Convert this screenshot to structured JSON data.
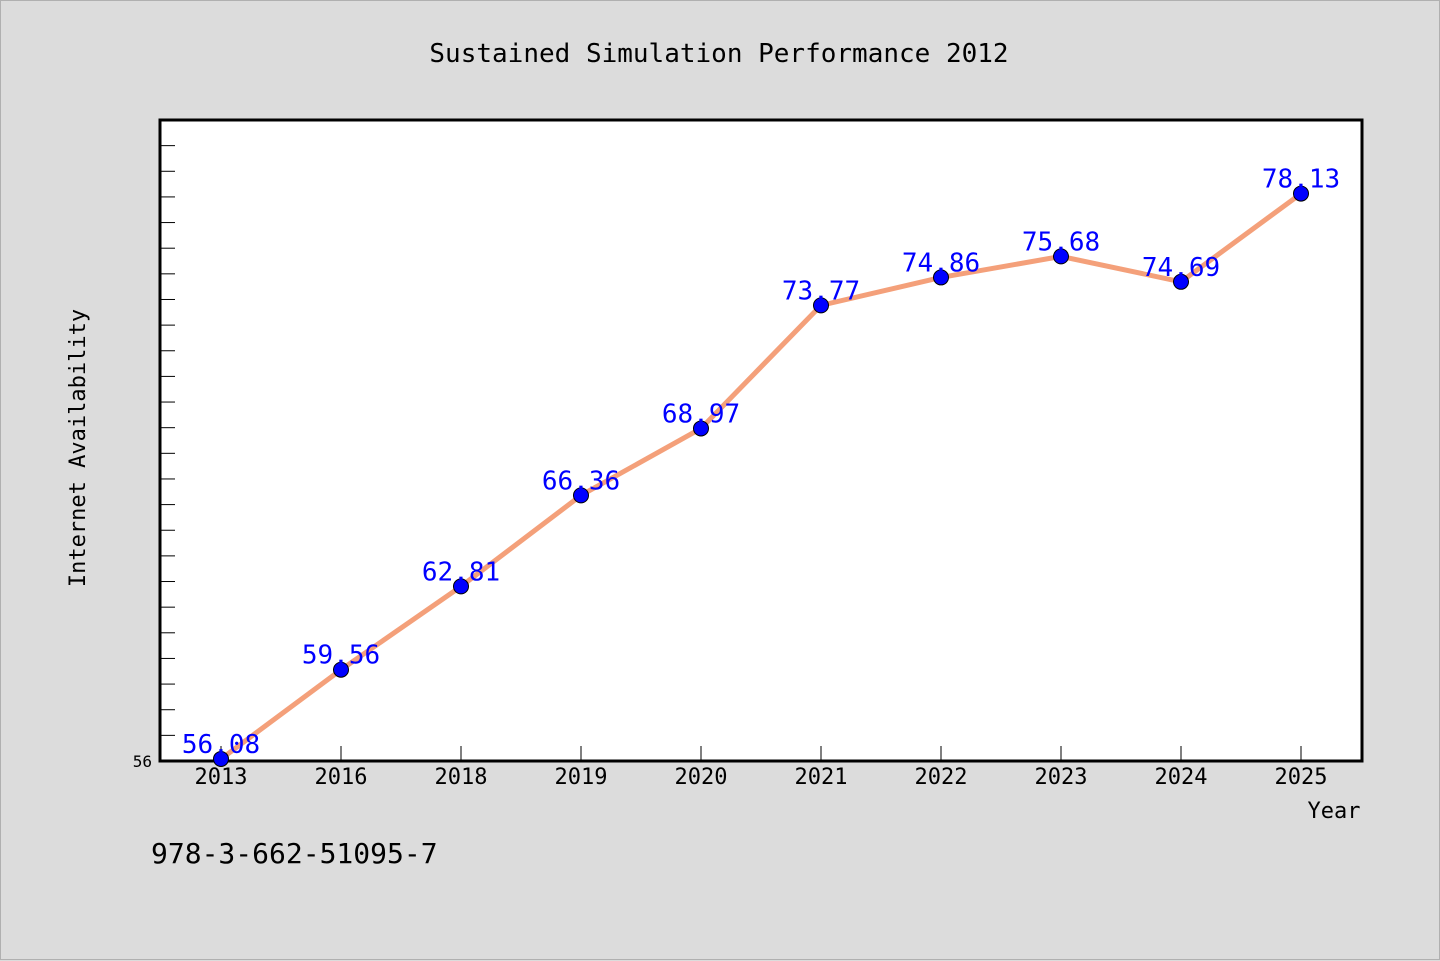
{
  "chart_data": {
    "type": "line",
    "title": "Sustained Simulation Performance 2012",
    "xlabel": "Year",
    "ylabel": "Internet Availability",
    "categories": [
      "2013",
      "2016",
      "2018",
      "2019",
      "2020",
      "2021",
      "2022",
      "2023",
      "2024",
      "2025"
    ],
    "series": [
      {
        "values": [
          56.08,
          59.56,
          62.81,
          66.36,
          68.97,
          73.77,
          74.86,
          75.68,
          74.69,
          78.13
        ],
        "labels": [
          "56.08",
          "59.56",
          "62.81",
          "66.36",
          "68.97",
          "73.77",
          "74.86",
          "75.68",
          "74.69",
          "78.13"
        ],
        "line_color": "#f4a07a",
        "marker_color": "#0000ff"
      }
    ],
    "y_tick_labels": [
      "56"
    ],
    "ylim": [
      56,
      81
    ],
    "grid": false,
    "legend": "none"
  },
  "footnote": "978-3-662-51095-7",
  "colors": {
    "background": "#dcdcdc",
    "plot_background": "#ffffff",
    "line": "#f4a07a",
    "marker": "#0000ff",
    "data_label": "#0000ff"
  }
}
